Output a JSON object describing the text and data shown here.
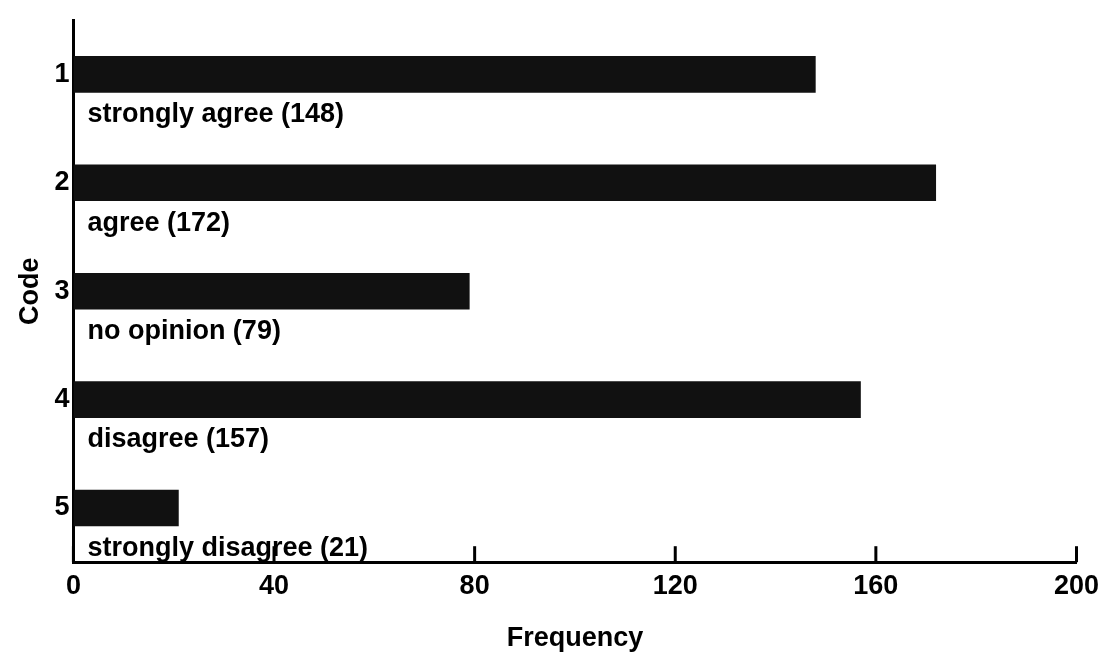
{
  "chart_data": {
    "type": "bar",
    "orientation": "horizontal",
    "categories": [
      "1",
      "2",
      "3",
      "4",
      "5"
    ],
    "values": [
      148,
      172,
      79,
      157,
      21
    ],
    "color": "#111111",
    "value_labels": [
      "strongly agree (148)",
      "agree (172)",
      "no opinion (79)",
      "disagree (157)",
      "strongly disagree (21)"
    ],
    "xlim": [
      0,
      200
    ],
    "xticks": [
      0,
      40,
      80,
      120,
      160,
      200
    ],
    "xlabel": "Frequency",
    "ylabel": "Code"
  }
}
